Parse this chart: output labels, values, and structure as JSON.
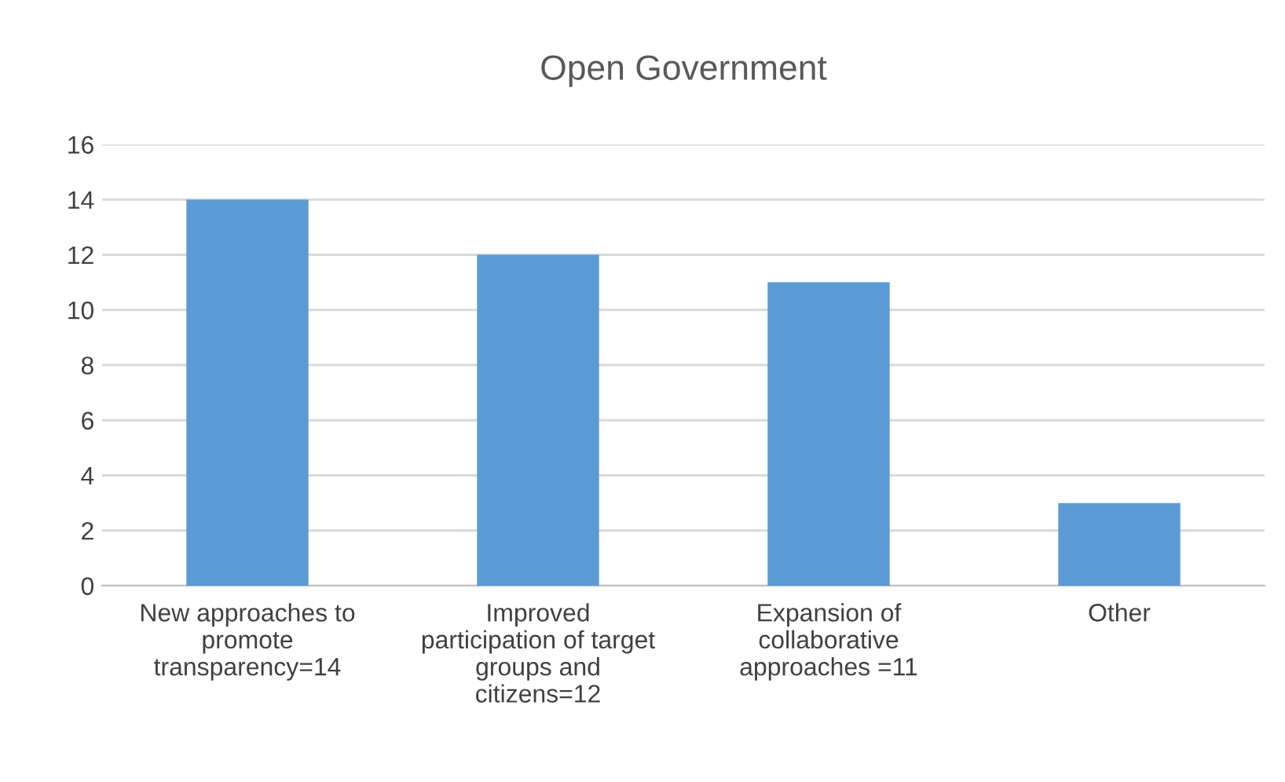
{
  "chart_data": {
    "type": "bar",
    "title": "Open Government",
    "categories": [
      "New approaches to\npromote\ntransparency=14",
      "Improved\nparticipation of target\ngroups and\ncitizens=12",
      "Expansion of\ncollaborative\napproaches =11",
      "Other"
    ],
    "values": [
      14,
      12,
      11,
      3
    ],
    "color": "#5b9bd5",
    "ylim": [
      0,
      16
    ],
    "yticks": [
      0,
      2,
      4,
      6,
      8,
      10,
      12,
      14,
      16
    ],
    "grid": "y"
  }
}
